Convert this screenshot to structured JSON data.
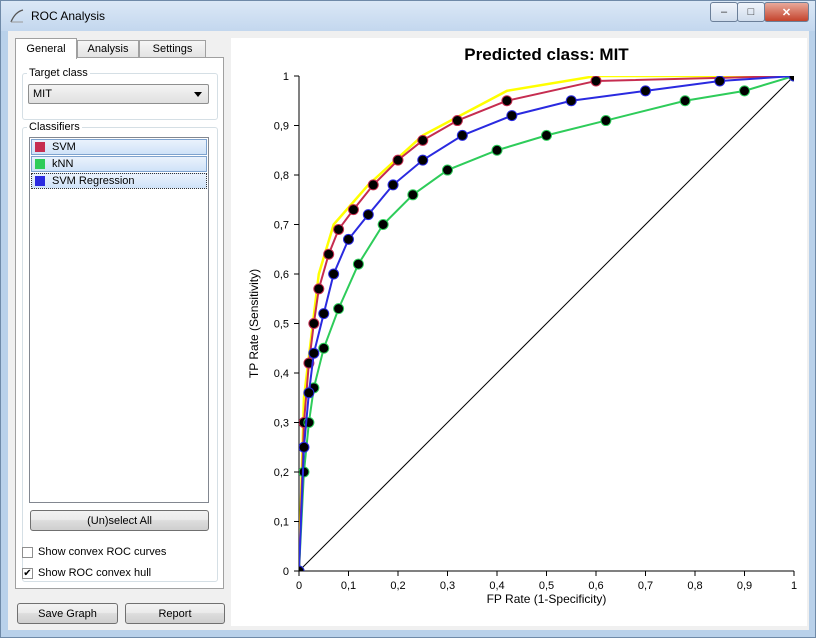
{
  "window": {
    "title": "ROC Analysis",
    "controls": {
      "minimize": "–",
      "maximize": "□",
      "close": "✕"
    }
  },
  "tabs": [
    {
      "label": "General",
      "active": true
    },
    {
      "label": "Analysis",
      "active": false
    },
    {
      "label": "Settings",
      "active": false
    }
  ],
  "target_class": {
    "group_title": "Target class",
    "selected": "MIT"
  },
  "classifiers": {
    "group_title": "Classifiers",
    "items": [
      {
        "label": "SVM",
        "color": "#c62d50"
      },
      {
        "label": "kNN",
        "color": "#2ecc5a"
      },
      {
        "label": "SVM Regression",
        "color": "#2a2ae0"
      }
    ],
    "select_all_label": "(Un)select All"
  },
  "options": [
    {
      "label": "Show convex ROC curves",
      "checked": false
    },
    {
      "label": "Show ROC convex hull",
      "checked": true
    }
  ],
  "buttons": {
    "save_graph": "Save Graph",
    "report": "Report"
  },
  "chart_data": {
    "type": "line",
    "title": "Predicted class: MIT",
    "xlabel": "FP Rate (1-Specificity)",
    "ylabel": "TP Rate (Sensitivity)",
    "xlim": [
      0,
      1
    ],
    "ylim": [
      0,
      1
    ],
    "x_ticks": [
      "0",
      "0,1",
      "0,2",
      "0,3",
      "0,4",
      "0,5",
      "0,6",
      "0,7",
      "0,8",
      "0,9",
      "1"
    ],
    "y_ticks": [
      "0",
      "0,1",
      "0,2",
      "0,3",
      "0,4",
      "0,5",
      "0,6",
      "0,7",
      "0,8",
      "0,9",
      "1"
    ],
    "grid": false,
    "diagonal": true,
    "series": [
      {
        "name": "SVM",
        "color": "#c62d50",
        "x": [
          0,
          0.01,
          0.02,
          0.03,
          0.04,
          0.06,
          0.08,
          0.11,
          0.15,
          0.2,
          0.25,
          0.32,
          0.42,
          0.6,
          1.0
        ],
        "y": [
          0,
          0.3,
          0.42,
          0.5,
          0.57,
          0.64,
          0.69,
          0.73,
          0.78,
          0.83,
          0.87,
          0.91,
          0.95,
          0.99,
          1.0
        ]
      },
      {
        "name": "kNN",
        "color": "#2ecc5a",
        "x": [
          0,
          0.01,
          0.02,
          0.03,
          0.05,
          0.08,
          0.12,
          0.17,
          0.23,
          0.3,
          0.4,
          0.5,
          0.62,
          0.78,
          0.9,
          1.0
        ],
        "y": [
          0,
          0.2,
          0.3,
          0.37,
          0.45,
          0.53,
          0.62,
          0.7,
          0.76,
          0.81,
          0.85,
          0.88,
          0.91,
          0.95,
          0.97,
          1.0
        ]
      },
      {
        "name": "SVM Regression",
        "color": "#2a2ae0",
        "x": [
          0,
          0.01,
          0.02,
          0.03,
          0.05,
          0.07,
          0.1,
          0.14,
          0.19,
          0.25,
          0.33,
          0.43,
          0.55,
          0.7,
          0.85,
          1.0
        ],
        "y": [
          0,
          0.25,
          0.36,
          0.44,
          0.52,
          0.6,
          0.67,
          0.72,
          0.78,
          0.83,
          0.88,
          0.92,
          0.95,
          0.97,
          0.99,
          1.0
        ]
      }
    ],
    "convex_hull": {
      "color": "#ffff00",
      "x": [
        0,
        0.01,
        0.04,
        0.07,
        0.14,
        0.25,
        0.42,
        0.6,
        1.0
      ],
      "y": [
        0,
        0.35,
        0.6,
        0.7,
        0.78,
        0.88,
        0.97,
        1.0,
        1.0
      ]
    }
  }
}
